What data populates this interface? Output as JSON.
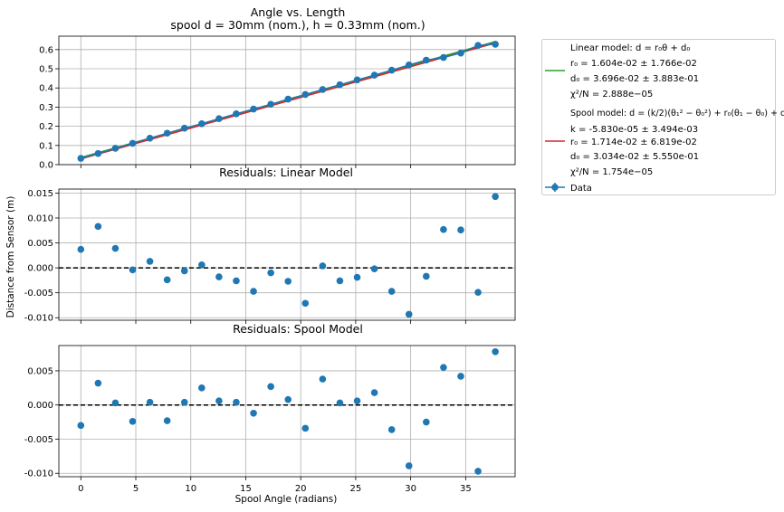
{
  "figure": {
    "title_line1": "Angle vs. Length",
    "title_line2": "spool d = 30mm (nom.), h = 0.33mm (nom.)",
    "ylabel": "Distance from Sensor (m)",
    "xlabel": "Spool Angle (radians)"
  },
  "legend": {
    "linear_title": "Linear model: d = r₀θ + d₀",
    "linear_r0": "r₀ =  1.604e-02 ± 1.766e-02",
    "linear_d0": "d₀ =  3.696e-02 ± 3.883e-01",
    "linear_chi": "χ²/N = 2.888e−05",
    "spool_title": "Spool model: d = (k/2)(θ₁² − θ₀²) + r₀(θ₁ − θ₀) + d₀",
    "spool_k": "k =  -5.830e-05 ± 3.494e-03",
    "spool_r0": "r₀ =  1.714e-02 ± 6.819e-02",
    "spool_d0": "d₀ =  3.034e-02 ± 5.550e-01",
    "spool_chi": "χ²/N = 1.754e−05",
    "data_label": "Data",
    "linear_color": "#2ca02c",
    "spool_color": "#d62728",
    "data_color": "#1f77b4"
  },
  "chart_data": [
    {
      "type": "scatter",
      "title": "",
      "xlabel": "",
      "ylabel": "",
      "x": [
        0,
        1.571,
        3.142,
        4.712,
        6.283,
        7.854,
        9.425,
        10.996,
        12.566,
        14.137,
        15.708,
        17.279,
        18.85,
        20.42,
        21.991,
        23.562,
        25.133,
        26.704,
        28.274,
        29.845,
        31.416,
        32.987,
        34.558,
        36.128,
        37.699
      ],
      "series": [
        {
          "name": "Data",
          "values": [
            0.033,
            0.058,
            0.085,
            0.111,
            0.138,
            0.164,
            0.19,
            0.213,
            0.24,
            0.265,
            0.29,
            0.315,
            0.342,
            0.366,
            0.392,
            0.417,
            0.442,
            0.467,
            0.493,
            0.52,
            0.545,
            0.559,
            0.582,
            0.622,
            0.628
          ]
        }
      ],
      "fits": [
        {
          "name": "Linear model",
          "x": [
            0,
            37.699
          ],
          "y": [
            0.037,
            0.6417
          ]
        },
        {
          "name": "Spool model",
          "x": [
            0,
            37.699
          ],
          "y": [
            0.0303,
            0.6349
          ]
        }
      ],
      "xlim": [
        -2,
        39.5
      ],
      "ylim": [
        0,
        0.67
      ],
      "yticks": [
        0.0,
        0.1,
        0.2,
        0.3,
        0.4,
        0.5,
        0.6
      ],
      "ytick_labels": [
        "0.0",
        "0.1",
        "0.2",
        "0.3",
        "0.4",
        "0.5",
        "0.6"
      ],
      "grid": true,
      "legend": "outside-right"
    },
    {
      "type": "scatter",
      "title": "Residuals: Linear Model",
      "x": [
        0,
        1.571,
        3.142,
        4.712,
        6.283,
        7.854,
        9.425,
        10.996,
        12.566,
        14.137,
        15.708,
        17.279,
        18.85,
        20.42,
        21.991,
        23.562,
        25.133,
        26.704,
        28.274,
        29.845,
        31.416,
        32.987,
        34.558,
        36.128,
        37.699
      ],
      "series": [
        {
          "name": "Data",
          "values": [
            0.0037,
            0.0083,
            0.0039,
            -0.0004,
            0.0013,
            -0.0024,
            -0.0006,
            0.0006,
            -0.0018,
            -0.0026,
            -0.0047,
            -0.001,
            -0.0027,
            -0.0071,
            0.0004,
            -0.0026,
            -0.0019,
            -0.0002,
            -0.0047,
            -0.0093,
            -0.0017,
            0.0077,
            0.0076,
            -0.0049,
            0.0143
          ]
        }
      ],
      "xlim": [
        -2,
        39.5
      ],
      "ylim": [
        -0.0105,
        0.0158
      ],
      "yticks": [
        -0.01,
        -0.005,
        0.0,
        0.005,
        0.01,
        0.015
      ],
      "ytick_labels": [
        "-0.010",
        "-0.005",
        "0.000",
        "0.005",
        "0.010",
        "0.015"
      ],
      "grid": true
    },
    {
      "type": "scatter",
      "title": "Residuals: Spool Model",
      "xlabel": "Spool Angle (radians)",
      "x": [
        0,
        1.571,
        3.142,
        4.712,
        6.283,
        7.854,
        9.425,
        10.996,
        12.566,
        14.137,
        15.708,
        17.279,
        18.85,
        20.42,
        21.991,
        23.562,
        25.133,
        26.704,
        28.274,
        29.845,
        31.416,
        32.987,
        34.558,
        36.128,
        37.699
      ],
      "series": [
        {
          "name": "Data",
          "values": [
            -0.003,
            0.0032,
            0.0003,
            -0.0024,
            0.0004,
            -0.0023,
            0.0004,
            0.0025,
            0.0006,
            0.0004,
            -0.0012,
            0.0027,
            0.0008,
            -0.0034,
            0.0038,
            0.0003,
            0.0006,
            0.0018,
            -0.0036,
            -0.0089,
            -0.0025,
            0.0055,
            0.0042,
            -0.0097,
            0.0078
          ]
        }
      ],
      "xlim": [
        -2,
        39.5
      ],
      "ylim": [
        -0.0105,
        0.0087
      ],
      "yticks": [
        -0.01,
        -0.005,
        0.0,
        0.005
      ],
      "ytick_labels": [
        "-0.010",
        "-0.005",
        "0.000",
        "0.005"
      ],
      "xticks": [
        0,
        5,
        10,
        15,
        20,
        25,
        30,
        35
      ],
      "xtick_labels": [
        "0",
        "5",
        "10",
        "15",
        "20",
        "25",
        "30",
        "35"
      ],
      "grid": true
    }
  ]
}
